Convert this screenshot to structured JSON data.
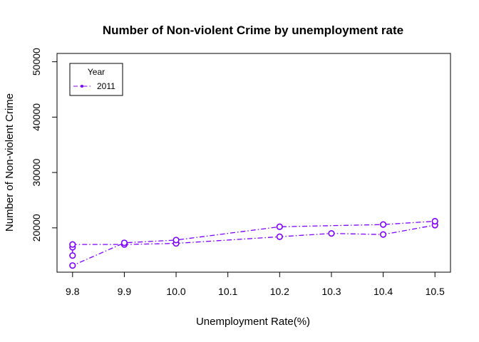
{
  "chart_data": {
    "type": "line",
    "title": "Number of Non-violent Crime by unemployment rate",
    "xlabel": "Unemployment Rate(%)",
    "ylabel": "Number of Non-violent Crime",
    "xlim": [
      9.77,
      10.53
    ],
    "ylim": [
      12000,
      51500
    ],
    "x_ticks": [
      "9.8",
      "9.9",
      "10.0",
      "10.1",
      "10.2",
      "10.3",
      "10.4",
      "10.5"
    ],
    "y_ticks": [
      "20000",
      "30000",
      "40000",
      "50000"
    ],
    "legend": {
      "title": "Year",
      "placement": "top-left"
    },
    "series": [
      {
        "name": "2011",
        "color": "#7F00FF",
        "line_style": "dash-dot",
        "marker": "open-circle",
        "points": [
          [
            9.8,
            15000
          ],
          [
            9.8,
            16500
          ],
          [
            9.8,
            17000
          ],
          [
            9.9,
            17000
          ],
          [
            10.0,
            17200
          ],
          [
            10.2,
            18400
          ],
          [
            10.3,
            19000
          ],
          [
            10.4,
            18800
          ],
          [
            10.5,
            20500
          ],
          [
            10.5,
            21200
          ],
          [
            10.4,
            20600
          ],
          [
            10.2,
            20200
          ],
          [
            10.0,
            17800
          ],
          [
            9.9,
            17300
          ],
          [
            9.8,
            13200
          ]
        ]
      }
    ]
  }
}
